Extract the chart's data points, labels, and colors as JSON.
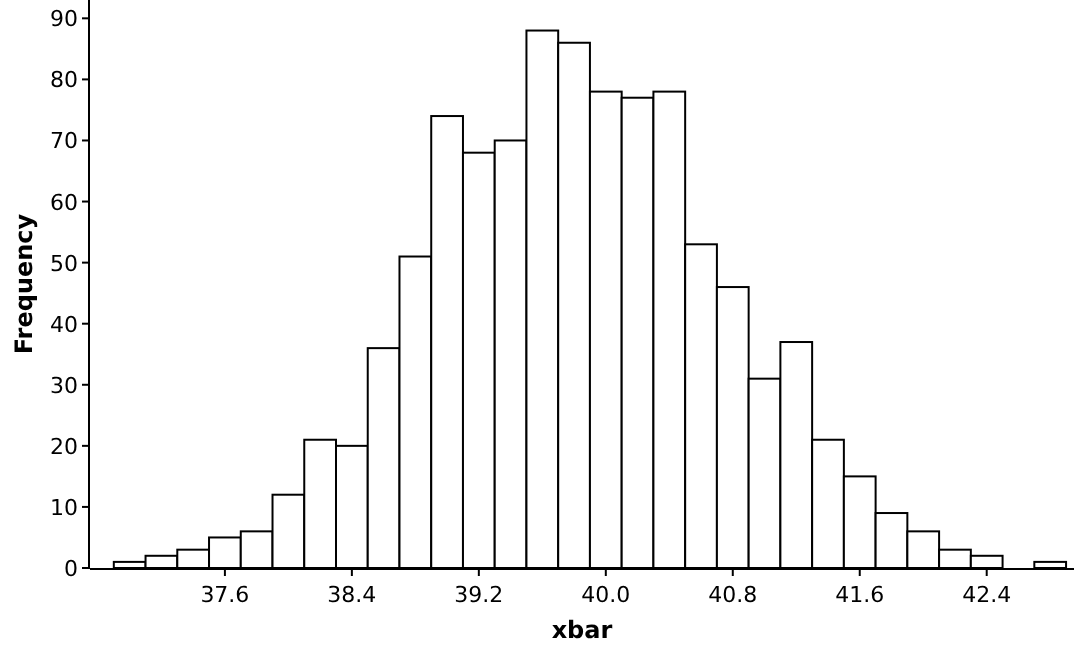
{
  "chart_data": {
    "type": "histogram",
    "xlabel": "xbar",
    "ylabel": "Frequency",
    "bins": [
      36.9,
      37.1,
      37.3,
      37.5,
      37.7,
      37.9,
      38.1,
      38.3,
      38.5,
      38.7,
      38.9,
      39.1,
      39.3,
      39.5,
      39.7,
      39.9,
      40.1,
      40.3,
      40.5,
      40.7,
      40.9,
      41.1,
      41.3,
      41.5,
      41.7,
      41.9,
      42.1,
      42.3,
      42.5,
      42.7,
      42.9
    ],
    "values": [
      1,
      2,
      3,
      5,
      6,
      12,
      21,
      20,
      36,
      51,
      74,
      68,
      70,
      88,
      86,
      78,
      77,
      78,
      53,
      46,
      31,
      37,
      21,
      15,
      9,
      6,
      3,
      2,
      0,
      1
    ],
    "color": "#ffffff",
    "xlim": [
      36.75,
      42.95
    ],
    "ylim": [
      0,
      93
    ],
    "xticks": [
      37.6,
      38.4,
      39.2,
      {
        "value": 40,
        "label": "40.0"
      },
      40.8,
      41.6,
      42.4
    ],
    "yticks": [
      0,
      10,
      20,
      30,
      40,
      50,
      60,
      70,
      80,
      90
    ],
    "grid": false
  }
}
